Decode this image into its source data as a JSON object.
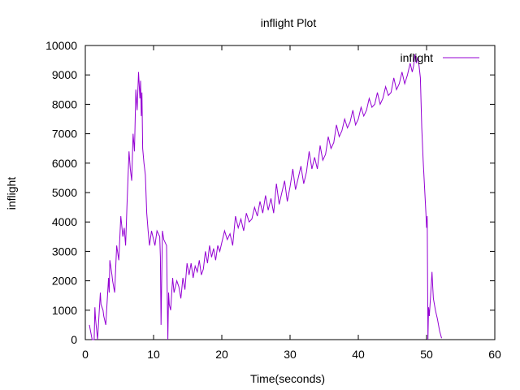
{
  "chart_data": {
    "type": "line",
    "title": "inflight Plot",
    "xlabel": "Time(seconds)",
    "ylabel": "inflight",
    "xlim": [
      0,
      60
    ],
    "ylim": [
      0,
      10000
    ],
    "xticks": [
      0,
      10,
      20,
      30,
      40,
      50,
      60
    ],
    "yticks": [
      0,
      1000,
      2000,
      3000,
      4000,
      5000,
      6000,
      7000,
      8000,
      9000,
      10000
    ],
    "grid": false,
    "legend_position": "top-right",
    "series": [
      {
        "name": "inflight",
        "color": "#9400d3",
        "x": [
          0.6,
          1.0,
          1.3,
          1.4,
          1.5,
          1.8,
          2.2,
          2.3,
          2.6,
          2.7,
          3.0,
          3.4,
          3.5,
          3.6,
          3.9,
          4.0,
          4.3,
          4.6,
          4.9,
          5.2,
          5.5,
          5.7,
          5.9,
          6.1,
          6.4,
          6.6,
          6.8,
          7.0,
          7.2,
          7.4,
          7.6,
          7.8,
          8.0,
          8.1,
          8.2,
          8.3,
          8.4,
          8.6,
          8.8,
          9.0,
          9.2,
          9.4,
          9.7,
          10.0,
          10.2,
          10.5,
          10.9,
          11.0,
          11.1,
          11.3,
          11.5,
          11.9,
          12.1,
          12.2,
          12.3,
          12.5,
          12.8,
          13.0,
          13.4,
          13.7,
          14.0,
          14.3,
          14.6,
          14.9,
          15.2,
          15.5,
          15.8,
          16.1,
          16.4,
          16.7,
          17.0,
          17.3,
          17.6,
          17.9,
          18.2,
          18.5,
          18.8,
          19.1,
          19.4,
          19.7,
          20.0,
          20.4,
          20.8,
          21.2,
          21.6,
          22.0,
          22.4,
          22.8,
          23.2,
          23.6,
          24.0,
          24.4,
          24.8,
          25.2,
          25.6,
          26.0,
          26.4,
          26.8,
          27.2,
          27.6,
          28.0,
          28.4,
          28.8,
          29.2,
          29.6,
          30.0,
          30.4,
          30.8,
          31.2,
          31.6,
          32.0,
          32.4,
          32.8,
          33.2,
          33.6,
          34.0,
          34.4,
          34.8,
          35.2,
          35.6,
          36.0,
          36.4,
          36.8,
          37.2,
          37.6,
          38.0,
          38.4,
          38.8,
          39.2,
          39.6,
          40.0,
          40.4,
          40.8,
          41.2,
          41.6,
          42.0,
          42.4,
          42.8,
          43.2,
          43.6,
          44.0,
          44.4,
          44.8,
          45.2,
          45.6,
          46.0,
          46.4,
          46.8,
          47.2,
          47.6,
          47.9,
          48.1,
          48.3,
          48.5,
          48.7,
          48.9,
          49.1,
          49.3,
          49.5,
          49.7,
          49.9,
          50.0,
          50.1,
          50.2,
          50.3,
          50.4,
          50.6,
          50.8,
          50.9,
          51.0,
          51.3,
          51.6,
          51.9,
          52.2
        ],
        "y": [
          500,
          0,
          0,
          1100,
          700,
          0,
          1600,
          1200,
          1000,
          800,
          500,
          2100,
          1600,
          2700,
          2200,
          2000,
          1600,
          3200,
          2700,
          4200,
          3500,
          3800,
          3200,
          4500,
          6400,
          5800,
          5400,
          7000,
          6400,
          8500,
          7800,
          9100,
          8200,
          8800,
          7600,
          8400,
          6500,
          6000,
          5600,
          4300,
          3700,
          3200,
          3700,
          3400,
          3200,
          3700,
          3500,
          2800,
          500,
          3700,
          3400,
          3200,
          0,
          1600,
          1200,
          1000,
          2100,
          1600,
          2000,
          1800,
          1400,
          2100,
          1700,
          2600,
          2200,
          2600,
          2100,
          2500,
          2300,
          2700,
          2200,
          2400,
          3000,
          2600,
          3200,
          2800,
          3100,
          2700,
          3200,
          3000,
          3300,
          3700,
          3400,
          3600,
          3200,
          4200,
          3800,
          4100,
          3700,
          4300,
          4000,
          4100,
          4500,
          4200,
          4700,
          4300,
          4900,
          4400,
          4800,
          4300,
          5300,
          4600,
          5000,
          5400,
          4700,
          5200,
          5800,
          5100,
          5500,
          5900,
          5300,
          5700,
          6400,
          5800,
          6200,
          5800,
          6600,
          6100,
          6300,
          6900,
          6500,
          6700,
          7300,
          6900,
          7100,
          7500,
          7200,
          7400,
          7800,
          7300,
          7500,
          7900,
          7600,
          7800,
          8200,
          7900,
          8000,
          8400,
          8000,
          8200,
          8600,
          8300,
          8400,
          8900,
          8500,
          8700,
          9100,
          8700,
          9000,
          9400,
          9100,
          9300,
          9700,
          9400,
          9600,
          9300,
          8900,
          7200,
          6100,
          5200,
          4300,
          3800,
          4200,
          0,
          1100,
          800,
          1500,
          2300,
          1800,
          1400,
          1000,
          700,
          300,
          50
        ]
      }
    ]
  }
}
